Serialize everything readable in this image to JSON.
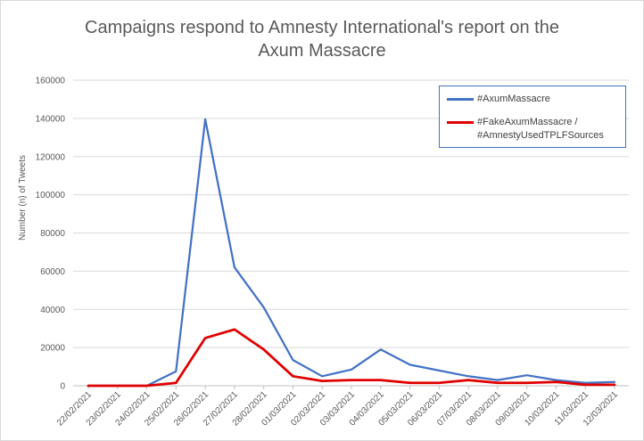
{
  "chart_data": {
    "type": "line",
    "title_line1": "Campaigns respond to Amnesty International's report on the",
    "title_line2": "Axum Massacre",
    "xlabel": "",
    "ylabel": "Number (n) of Tweets",
    "ylim": [
      0,
      160000
    ],
    "yticks": [
      "0",
      "20000",
      "40000",
      "60000",
      "80000",
      "100000",
      "120000",
      "140000",
      "160000"
    ],
    "grid": true,
    "legend_position": "top-right",
    "categories": [
      "22/02/2021",
      "23/02/2021",
      "24/02/2021",
      "25/02/2021",
      "26/02/2021",
      "27/02/2021",
      "28/02/2021",
      "01/03/2021",
      "02/03/2021",
      "03/03/2021",
      "04/03/2021",
      "05/03/2021",
      "06/03/2021",
      "07/03/2021",
      "08/03/2021",
      "09/03/2021",
      "10/03/2021",
      "11/03/2021",
      "12/03/2021"
    ],
    "series": [
      {
        "name": "#AxumMassacre",
        "color": "#4472c4",
        "values": [
          0,
          0,
          0,
          7500,
          139500,
          62000,
          41000,
          13500,
          5000,
          8500,
          19000,
          11000,
          8000,
          5000,
          3000,
          5500,
          3000,
          1500,
          2000
        ]
      },
      {
        "name_line1": "#FakeAxumMassacre /",
        "name_line2": "#AmnestyUsedTPLFSources",
        "color": "#e00000",
        "values": [
          0,
          0,
          0,
          1500,
          25000,
          29500,
          19000,
          5000,
          2500,
          3000,
          3000,
          1500,
          1500,
          3000,
          1500,
          1500,
          2000,
          500,
          500
        ]
      }
    ]
  }
}
